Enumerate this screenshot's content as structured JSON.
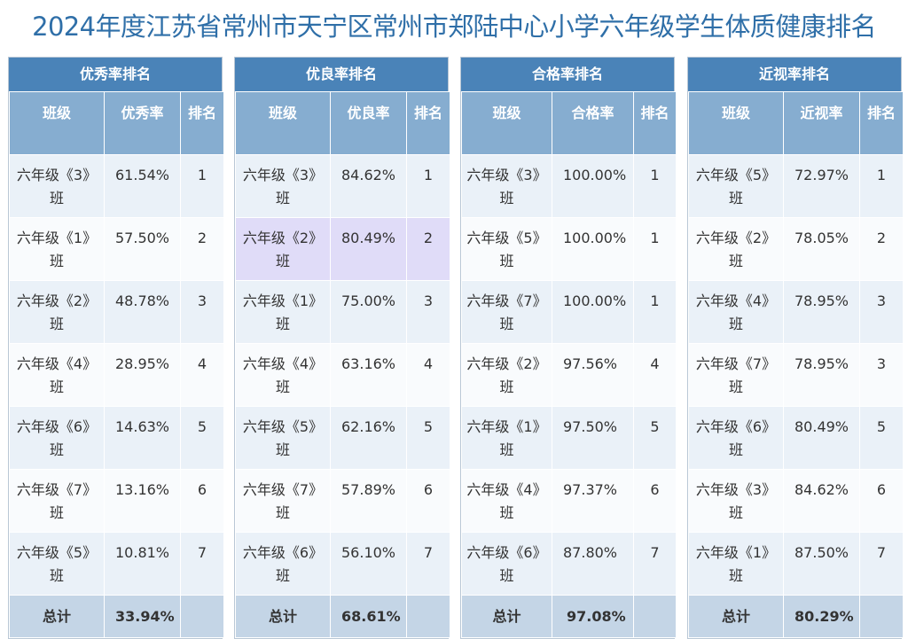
{
  "title": "2024年度江苏省常州市天宁区常州市郑陆中心小学六年级学生体质健康排名",
  "panels": [
    {
      "heading": "优秀率排名",
      "columns": [
        "班级",
        "优秀率",
        "排名"
      ],
      "rows": [
        {
          "cls": "六年级《3》班",
          "value": "61.54%",
          "rank": "1"
        },
        {
          "cls": "六年级《1》班",
          "value": "57.50%",
          "rank": "2"
        },
        {
          "cls": "六年级《2》班",
          "value": "48.78%",
          "rank": "3"
        },
        {
          "cls": "六年级《4》班",
          "value": "28.95%",
          "rank": "4"
        },
        {
          "cls": "六年级《6》班",
          "value": "14.63%",
          "rank": "5"
        },
        {
          "cls": "六年级《7》班",
          "value": "13.16%",
          "rank": "6"
        },
        {
          "cls": "六年级《5》班",
          "value": "10.81%",
          "rank": "7"
        }
      ],
      "total_label": "总计",
      "total_value": "33.94%"
    },
    {
      "heading": "优良率排名",
      "columns": [
        "班级",
        "优良率",
        "排名"
      ],
      "rows": [
        {
          "cls": "六年级《3》班",
          "value": "84.62%",
          "rank": "1"
        },
        {
          "cls": "六年级《2》班",
          "value": "80.49%",
          "rank": "2"
        },
        {
          "cls": "六年级《1》班",
          "value": "75.00%",
          "rank": "3"
        },
        {
          "cls": "六年级《4》班",
          "value": "63.16%",
          "rank": "4"
        },
        {
          "cls": "六年级《5》班",
          "value": "62.16%",
          "rank": "5"
        },
        {
          "cls": "六年级《7》班",
          "value": "57.89%",
          "rank": "6"
        },
        {
          "cls": "六年级《6》班",
          "value": "56.10%",
          "rank": "7"
        }
      ],
      "total_label": "总计",
      "total_value": "68.61%"
    },
    {
      "heading": "合格率排名",
      "columns": [
        "班级",
        "合格率",
        "排名"
      ],
      "rows": [
        {
          "cls": "六年级《3》班",
          "value": "100.00%",
          "rank": "1"
        },
        {
          "cls": "六年级《5》班",
          "value": "100.00%",
          "rank": "1"
        },
        {
          "cls": "六年级《7》班",
          "value": "100.00%",
          "rank": "1"
        },
        {
          "cls": "六年级《2》班",
          "value": "97.56%",
          "rank": "4"
        },
        {
          "cls": "六年级《1》班",
          "value": "97.50%",
          "rank": "5"
        },
        {
          "cls": "六年级《4》班",
          "value": "97.37%",
          "rank": "6"
        },
        {
          "cls": "六年级《6》班",
          "value": "87.80%",
          "rank": "7"
        }
      ],
      "total_label": "总计",
      "total_value": "97.08%"
    },
    {
      "heading": "近视率排名",
      "columns": [
        "班级",
        "近视率",
        "排名"
      ],
      "rows": [
        {
          "cls": "六年级《5》班",
          "value": "72.97%",
          "rank": "1"
        },
        {
          "cls": "六年级《2》班",
          "value": "78.05%",
          "rank": "2"
        },
        {
          "cls": "六年级《4》班",
          "value": "78.95%",
          "rank": "3"
        },
        {
          "cls": "六年级《7》班",
          "value": "78.95%",
          "rank": "3"
        },
        {
          "cls": "六年级《6》班",
          "value": "80.49%",
          "rank": "5"
        },
        {
          "cls": "六年级《3》班",
          "value": "84.62%",
          "rank": "6"
        },
        {
          "cls": "六年级《1》班",
          "value": "87.50%",
          "rank": "7"
        }
      ],
      "total_label": "总计",
      "total_value": "80.29%"
    }
  ],
  "highlight_color": "#e0dcf8",
  "header_color": "#4a83b8",
  "title_color": "#2f6fa8"
}
